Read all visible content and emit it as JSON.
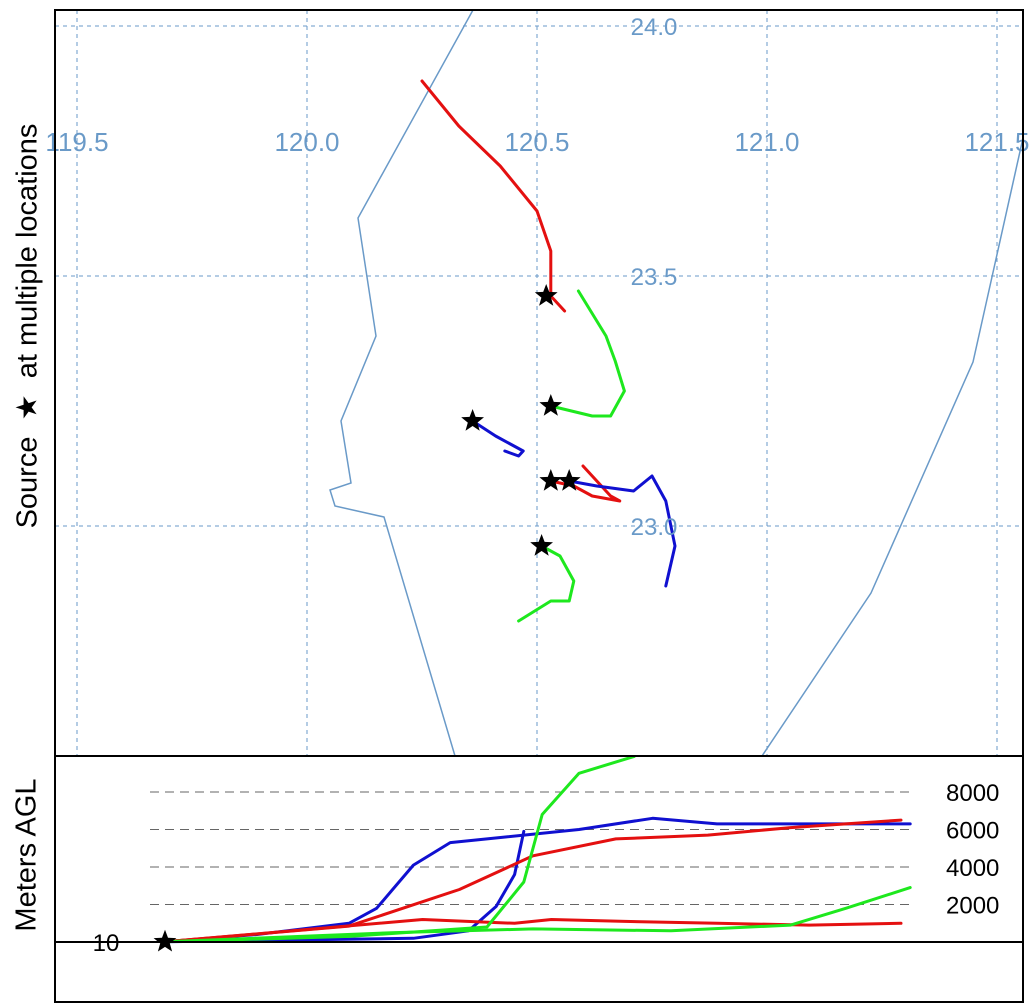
{
  "side_label": {
    "prefix": "Source",
    "star_symbol": "★",
    "suffix": "at multiple locations"
  },
  "height_panel_label": "Meters AGL",
  "colors": {
    "red": "#e41010",
    "green": "#1ee81e",
    "blue": "#1010d0",
    "grid": "#6a9ac8",
    "coast": "#6a9ac8"
  },
  "map": {
    "longitude_labels": [
      "119.5",
      "120.0",
      "120.5",
      "121.0",
      "121.5"
    ],
    "latitude_labels": [
      "24.0",
      "23.5",
      "23.0"
    ],
    "marker_icon": "star-icon"
  },
  "height_panel": {
    "tick_labels": [
      "8000",
      "6000",
      "4000",
      "2000"
    ],
    "start_label": "10"
  },
  "chart_data": [
    {
      "type": "line",
      "title": "",
      "xlabel": "",
      "ylabel": "",
      "x_ticks": [
        119.5,
        120.0,
        120.5,
        121.0,
        121.5
      ],
      "y_ticks": [
        24.0,
        23.5,
        23.0
      ],
      "sources": [
        {
          "lon": 120.52,
          "lat": 23.46
        },
        {
          "lon": 120.53,
          "lat": 23.24
        },
        {
          "lon": 120.36,
          "lat": 23.21
        },
        {
          "lon": 120.53,
          "lat": 23.09
        },
        {
          "lon": 120.57,
          "lat": 23.09
        },
        {
          "lon": 120.51,
          "lat": 22.96
        }
      ],
      "series": [
        {
          "color": "red",
          "points": [
            [
              120.25,
              23.89
            ],
            [
              120.33,
              23.8
            ],
            [
              120.42,
              23.72
            ],
            [
              120.5,
              23.63
            ],
            [
              120.53,
              23.55
            ],
            [
              120.53,
              23.46
            ],
            [
              120.56,
              23.43
            ]
          ]
        },
        {
          "color": "green",
          "points": [
            [
              120.53,
              23.24
            ],
            [
              120.62,
              23.22
            ],
            [
              120.66,
              23.22
            ],
            [
              120.69,
              23.27
            ],
            [
              120.67,
              23.33
            ],
            [
              120.65,
              23.38
            ],
            [
              120.59,
              23.47
            ]
          ]
        },
        {
          "color": "blue",
          "points": [
            [
              120.36,
              23.21
            ],
            [
              120.41,
              23.18
            ],
            [
              120.45,
              23.16
            ],
            [
              120.47,
              23.15
            ],
            [
              120.46,
              23.14
            ],
            [
              120.43,
              23.15
            ]
          ]
        },
        {
          "color": "red",
          "points": [
            [
              120.53,
              23.09
            ],
            [
              120.58,
              23.08
            ],
            [
              120.62,
              23.06
            ],
            [
              120.68,
              23.05
            ],
            [
              120.66,
              23.06
            ],
            [
              120.6,
              23.12
            ]
          ]
        },
        {
          "color": "blue",
          "points": [
            [
              120.57,
              23.09
            ],
            [
              120.63,
              23.08
            ],
            [
              120.71,
              23.07
            ],
            [
              120.75,
              23.1
            ],
            [
              120.78,
              23.05
            ],
            [
              120.8,
              22.96
            ],
            [
              120.78,
              22.88
            ]
          ]
        },
        {
          "color": "green",
          "points": [
            [
              120.51,
              22.96
            ],
            [
              120.55,
              22.94
            ],
            [
              120.58,
              22.89
            ],
            [
              120.57,
              22.85
            ],
            [
              120.53,
              22.85
            ],
            [
              120.46,
              22.81
            ]
          ]
        }
      ]
    },
    {
      "type": "line",
      "title": "",
      "xlabel": "",
      "ylabel": "",
      "y_ticks": [
        2000,
        4000,
        6000,
        8000
      ],
      "start_height": 10,
      "series": [
        {
          "color": "blue",
          "points": [
            [
              0,
              10
            ],
            [
              10,
              400
            ],
            [
              20,
              1000
            ],
            [
              23,
              1800
            ],
            [
              27,
              4100
            ],
            [
              31,
              5300
            ],
            [
              37,
              5600
            ],
            [
              45,
              6000
            ],
            [
              53,
              6600
            ],
            [
              60,
              6300
            ],
            [
              68,
              6300
            ],
            [
              81,
              6300
            ]
          ]
        },
        {
          "color": "blue",
          "points": [
            [
              0,
              10
            ],
            [
              27,
              200
            ],
            [
              33,
              600
            ],
            [
              36,
              1900
            ],
            [
              38,
              3600
            ],
            [
              39,
              5900
            ]
          ]
        },
        {
          "color": "red",
          "points": [
            [
              0,
              10
            ],
            [
              20,
              850
            ],
            [
              32,
              2800
            ],
            [
              40,
              4600
            ],
            [
              49,
              5500
            ],
            [
              59,
              5700
            ],
            [
              68,
              6100
            ],
            [
              80,
              6500
            ]
          ]
        },
        {
          "color": "red",
          "points": [
            [
              0,
              10
            ],
            [
              28,
              1200
            ],
            [
              38,
              1000
            ],
            [
              42,
              1200
            ],
            [
              50,
              1100
            ],
            [
              60,
              1000
            ],
            [
              70,
              900
            ],
            [
              80,
              1000
            ]
          ]
        },
        {
          "color": "green",
          "points": [
            [
              0,
              10
            ],
            [
              20,
              300
            ],
            [
              35,
              800
            ],
            [
              39,
              3200
            ],
            [
              41,
              6800
            ],
            [
              45,
              9000
            ],
            [
              51,
              9900
            ]
          ]
        },
        {
          "color": "green",
          "points": [
            [
              0,
              10
            ],
            [
              25,
              500
            ],
            [
              40,
              700
            ],
            [
              55,
              600
            ],
            [
              68,
              900
            ],
            [
              74,
              1800
            ],
            [
              81,
              2900
            ]
          ]
        }
      ]
    }
  ]
}
